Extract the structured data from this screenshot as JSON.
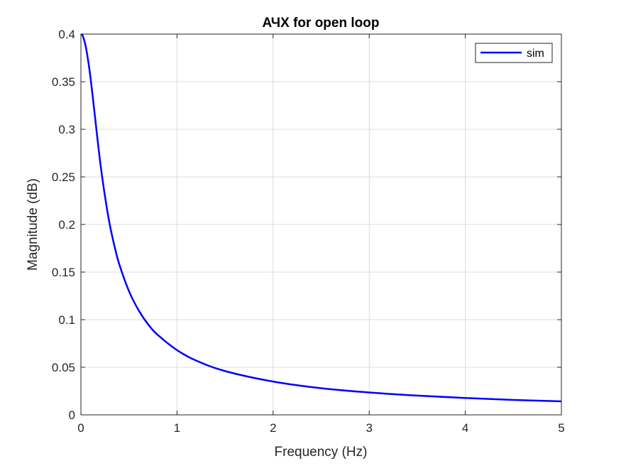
{
  "chart_data": {
    "type": "line",
    "title": "АЧХ for open loop",
    "xlabel": "Frequency (Hz)",
    "ylabel": "Magnitude (dB)",
    "xlim": [
      0,
      5
    ],
    "ylim": [
      0,
      0.4
    ],
    "xticks": [
      "0",
      "1",
      "2",
      "3",
      "4",
      "5"
    ],
    "yticks": [
      "0",
      "0.05",
      "0.1",
      "0.15",
      "0.2",
      "0.25",
      "0.3",
      "0.35",
      "0.4"
    ],
    "grid": true,
    "legend_position": "top-right",
    "series": [
      {
        "name": "sim",
        "color": "#0000ff",
        "x": [
          0,
          0.02,
          0.05,
          0.08,
          0.1,
          0.12,
          0.15,
          0.2,
          0.25,
          0.3,
          0.35,
          0.4,
          0.5,
          0.6,
          0.7,
          0.8,
          1.0,
          1.2,
          1.5,
          2.0,
          2.5,
          3.0,
          3.5,
          4.0,
          4.5,
          5.0
        ],
        "y": [
          0.4,
          0.398,
          0.387,
          0.369,
          0.354,
          0.337,
          0.31,
          0.266,
          0.23,
          0.2,
          0.177,
          0.158,
          0.13,
          0.11,
          0.095,
          0.084,
          0.068,
          0.057,
          0.046,
          0.035,
          0.028,
          0.0235,
          0.0202,
          0.0177,
          0.0157,
          0.0142
        ]
      }
    ]
  }
}
